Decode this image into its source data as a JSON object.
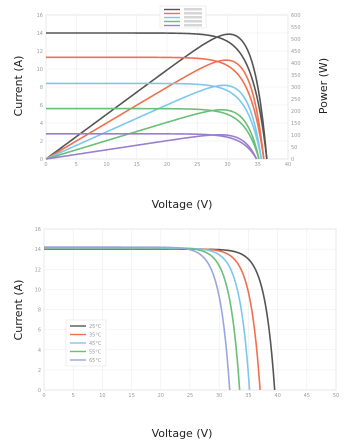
{
  "chart_data": [
    {
      "type": "line",
      "xlabel": "Voltage (V)",
      "ylabel": "Current (A)",
      "y2label": "Power (W)",
      "xlim": [
        0,
        40
      ],
      "ylim": [
        0,
        16
      ],
      "y2lim": [
        0,
        600
      ],
      "x_ticks": [
        0,
        5,
        10,
        15,
        20,
        25,
        30,
        35,
        40
      ],
      "y_ticks": [
        0,
        2,
        4,
        6,
        8,
        10,
        12,
        14,
        16
      ],
      "y2_ticks": [
        0,
        50,
        100,
        150,
        200,
        250,
        300,
        350,
        400,
        450,
        500,
        550,
        600
      ],
      "grid": true,
      "legend": "top-center",
      "series": [
        {
          "color": "#555555",
          "isc": 14.0,
          "voc": 36.5,
          "vmp": 28.6,
          "pmax": 520
        },
        {
          "color": "#f0704e",
          "isc": 11.3,
          "voc": 36.0,
          "vmp": 28.6,
          "pmax": 412
        },
        {
          "color": "#7cc8ec",
          "isc": 8.4,
          "voc": 35.6,
          "vmp": 28.6,
          "pmax": 307
        },
        {
          "color": "#6abf77",
          "isc": 5.6,
          "voc": 35.2,
          "vmp": 28.6,
          "pmax": 205
        },
        {
          "color": "#9a7fd0",
          "isc": 2.8,
          "voc": 34.8,
          "vmp": 28.6,
          "pmax": 101
        }
      ]
    },
    {
      "type": "line",
      "xlabel": "Voltage (V)",
      "ylabel": "Current (A)",
      "xlim": [
        0,
        50
      ],
      "ylim": [
        0,
        16
      ],
      "x_ticks": [
        0,
        5,
        10,
        15,
        20,
        25,
        30,
        35,
        40,
        45,
        50
      ],
      "y_ticks": [
        0,
        2,
        4,
        6,
        8,
        10,
        12,
        14,
        16
      ],
      "grid": true,
      "legend": "center-left",
      "series": [
        {
          "name": "25°C",
          "color": "#555555",
          "isc": 14.0,
          "voc": 39.5
        },
        {
          "name": "35°C",
          "color": "#f0704e",
          "isc": 14.05,
          "voc": 37.0
        },
        {
          "name": "45°C",
          "color": "#7cc8ec",
          "isc": 14.1,
          "voc": 35.2
        },
        {
          "name": "55°C",
          "color": "#6abf77",
          "isc": 14.15,
          "voc": 33.5
        },
        {
          "name": "65°C",
          "color": "#9aa6e0",
          "isc": 14.2,
          "voc": 31.8
        }
      ]
    }
  ]
}
